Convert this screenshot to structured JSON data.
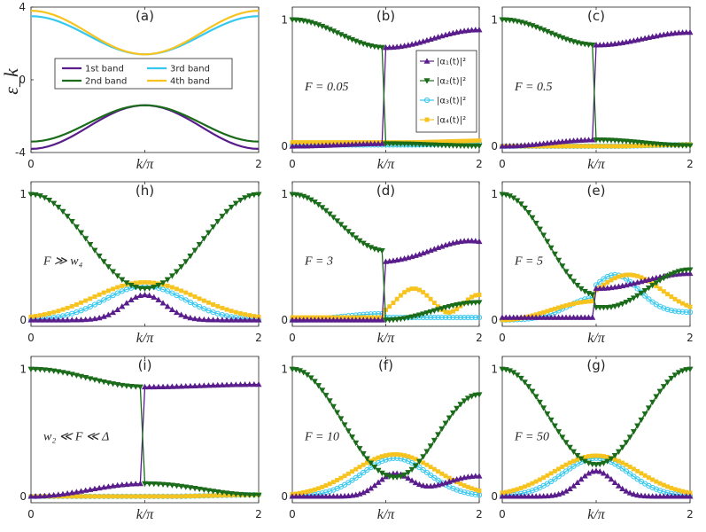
{
  "colors": {
    "purple": "#5a1d8c",
    "green": "#1a6b1a",
    "cyan": "#36c8ef",
    "yellow": "#f7c31f",
    "axis": "#262626"
  },
  "chart_data": [
    {
      "id": "a",
      "type": "line",
      "title": "(a)",
      "xlabel": "k/π",
      "ylabel": "ε_k",
      "xlim": [
        0,
        2
      ],
      "ylim": [
        -4,
        4
      ],
      "xticks": [
        "0",
        "k/π",
        "2"
      ],
      "yticks": [
        "4",
        "0",
        "-4"
      ],
      "model": {
        "kind": "bands",
        "samples": 41
      },
      "series": [
        {
          "name": "1st band",
          "color": "purple",
          "marker": "none",
          "center": -2.6,
          "amp": 1.2
        },
        {
          "name": "2nd band",
          "color": "green",
          "marker": "none",
          "center": -2.4,
          "amp": 1.0
        },
        {
          "name": "3rd band",
          "color": "cyan",
          "marker": "none",
          "center": 2.45,
          "amp": 1.05
        },
        {
          "name": "4th band",
          "color": "yellow",
          "marker": "none",
          "center": 2.6,
          "amp": 1.2
        }
      ],
      "legend": {
        "position": "center",
        "columns": 2,
        "entries": [
          "1st band",
          "3rd band",
          "2nd band",
          "4th band"
        ]
      }
    },
    {
      "id": "b",
      "type": "line",
      "title": "(b)",
      "annotation": "F = 0.05",
      "xlim": [
        0,
        2
      ],
      "ylim": [
        -0.05,
        1.1
      ],
      "xticks": [
        "0",
        "k/π",
        "2"
      ],
      "yticks": [
        "1",
        "0"
      ],
      "model": {
        "kind": "jump",
        "jump_k": 1.0,
        "hi_left": 1.0,
        "hi_end": 0.78,
        "hi_right": 0.92,
        "lo": 0.02,
        "samples": 51
      },
      "series": [
        {
          "name": "|α1(t)|²",
          "color": "purple",
          "marker": "up"
        },
        {
          "name": "|α2(t)|²",
          "color": "green",
          "marker": "down"
        },
        {
          "name": "|α3(t)|²",
          "color": "cyan",
          "marker": "circle",
          "flat": 0.01
        },
        {
          "name": "|α4(t)|²",
          "color": "yellow",
          "marker": "square",
          "flat": 0.03
        }
      ],
      "legend": {
        "position": "center-right",
        "entries": [
          "|α₁(t)|²",
          "|α₂(t)|²",
          "|α₃(t)|²",
          "|α₄(t)|²"
        ]
      }
    },
    {
      "id": "c",
      "type": "line",
      "title": "(c)",
      "annotation": "F = 0.5",
      "xlim": [
        0,
        2
      ],
      "ylim": [
        -0.05,
        1.1
      ],
      "xticks": [
        "0",
        "k/π",
        "2"
      ],
      "yticks": [
        "1",
        "0"
      ],
      "model": {
        "kind": "jump",
        "jump_k": 1.0,
        "hi_left": 1.0,
        "hi_end": 0.8,
        "hi_right": 0.9,
        "lo": 0.05,
        "samples": 51
      },
      "series": [
        {
          "name": "|α1(t)|²",
          "color": "purple",
          "marker": "up"
        },
        {
          "name": "|α2(t)|²",
          "color": "green",
          "marker": "down"
        },
        {
          "name": "|α3(t)|²",
          "color": "cyan",
          "marker": "circle",
          "flat": 0.0
        },
        {
          "name": "|α4(t)|²",
          "color": "yellow",
          "marker": "square",
          "flat": 0.0
        }
      ]
    },
    {
      "id": "h",
      "type": "line",
      "title": "(h)",
      "annotation": "F ≫ w₄",
      "xlim": [
        0,
        2
      ],
      "ylim": [
        -0.05,
        1.1
      ],
      "xticks": [
        "0",
        "k/π",
        "2"
      ],
      "yticks": [
        "1",
        "0"
      ],
      "model": {
        "kind": "cross",
        "cross_y": 0.25,
        "y_end": 1.0,
        "yellow_peak": 0.3,
        "cyan_peak": 0.27,
        "purple_peak": 0.2,
        "peak_k": 1.0,
        "samples": 51
      },
      "series": [
        {
          "name": "|α1(t)|²",
          "color": "purple",
          "marker": "up"
        },
        {
          "name": "|α2(t)|²",
          "color": "green",
          "marker": "down"
        },
        {
          "name": "|α3(t)|²",
          "color": "cyan",
          "marker": "circle"
        },
        {
          "name": "|α4(t)|²",
          "color": "yellow",
          "marker": "square"
        }
      ]
    },
    {
      "id": "d",
      "type": "line",
      "title": "(d)",
      "annotation": "F = 3",
      "xlim": [
        0,
        2
      ],
      "ylim": [
        -0.05,
        1.1
      ],
      "xticks": [
        "0",
        "k/π",
        "2"
      ],
      "yticks": [
        "1",
        "0"
      ],
      "model": {
        "kind": "jump3",
        "jump_k": 1.0,
        "samples": 51
      },
      "series": [
        {
          "name": "|α1(t)|²",
          "color": "purple",
          "marker": "up"
        },
        {
          "name": "|α2(t)|²",
          "color": "green",
          "marker": "down"
        },
        {
          "name": "|α3(t)|²",
          "color": "cyan",
          "marker": "circle"
        },
        {
          "name": "|α4(t)|²",
          "color": "yellow",
          "marker": "square"
        }
      ]
    },
    {
      "id": "e",
      "type": "line",
      "title": "(e)",
      "annotation": "F = 5",
      "xlim": [
        0,
        2
      ],
      "ylim": [
        -0.05,
        1.1
      ],
      "xticks": [
        "0",
        "k/π",
        "2"
      ],
      "yticks": [
        "1",
        "0"
      ],
      "model": {
        "kind": "jump5",
        "jump_k": 1.0,
        "samples": 51
      },
      "series": [
        {
          "name": "|α1(t)|²",
          "color": "purple",
          "marker": "up"
        },
        {
          "name": "|α2(t)|²",
          "color": "green",
          "marker": "down"
        },
        {
          "name": "|α3(t)|²",
          "color": "cyan",
          "marker": "circle"
        },
        {
          "name": "|α4(t)|²",
          "color": "yellow",
          "marker": "square"
        }
      ]
    },
    {
      "id": "i",
      "type": "line",
      "title": "(i)",
      "annotation": "w₂ ≪ F ≪ Δ",
      "xlim": [
        0,
        2
      ],
      "ylim": [
        -0.05,
        1.1
      ],
      "xticks": [
        "0",
        "k/π",
        "2"
      ],
      "yticks": [
        "1",
        "0"
      ],
      "model": {
        "kind": "jump",
        "jump_k": 1.0,
        "hi_left": 1.0,
        "hi_end": 0.86,
        "hi_right": 0.88,
        "lo": 0.1,
        "samples": 51
      },
      "series": [
        {
          "name": "|α1(t)|²",
          "color": "purple",
          "marker": "up"
        },
        {
          "name": "|α2(t)|²",
          "color": "green",
          "marker": "down"
        },
        {
          "name": "|α3(t)|²",
          "color": "cyan",
          "marker": "circle",
          "flat": 0.0
        },
        {
          "name": "|α4(t)|²",
          "color": "yellow",
          "marker": "square",
          "flat": 0.0
        }
      ]
    },
    {
      "id": "f",
      "type": "line",
      "title": "(f)",
      "annotation": "F = 10",
      "xlim": [
        0,
        2
      ],
      "ylim": [
        -0.05,
        1.1
      ],
      "xticks": [
        "0",
        "k/π",
        "2"
      ],
      "yticks": [
        "1",
        "0"
      ],
      "model": {
        "kind": "cross",
        "cross_y": 0.15,
        "y_end": 0.8,
        "yellow_peak": 0.33,
        "cyan_peak": 0.3,
        "purple_peak": 0.18,
        "peak_k": 1.1,
        "tail": 0.16,
        "samples": 51
      },
      "series": [
        {
          "name": "|α1(t)|²",
          "color": "purple",
          "marker": "up"
        },
        {
          "name": "|α2(t)|²",
          "color": "green",
          "marker": "down"
        },
        {
          "name": "|α3(t)|²",
          "color": "cyan",
          "marker": "circle"
        },
        {
          "name": "|α4(t)|²",
          "color": "yellow",
          "marker": "square"
        }
      ]
    },
    {
      "id": "g",
      "type": "line",
      "title": "(g)",
      "annotation": "F = 50",
      "xlim": [
        0,
        2
      ],
      "ylim": [
        -0.05,
        1.1
      ],
      "xticks": [
        "0",
        "k/π",
        "2"
      ],
      "yticks": [
        "1",
        "0"
      ],
      "model": {
        "kind": "cross",
        "cross_y": 0.25,
        "y_end": 1.0,
        "yellow_peak": 0.32,
        "cyan_peak": 0.3,
        "purple_peak": 0.2,
        "peak_k": 1.0,
        "samples": 51
      },
      "series": [
        {
          "name": "|α1(t)|²",
          "color": "purple",
          "marker": "up"
        },
        {
          "name": "|α2(t)|²",
          "color": "green",
          "marker": "down"
        },
        {
          "name": "|α3(t)|²",
          "color": "cyan",
          "marker": "circle"
        },
        {
          "name": "|α4(t)|²",
          "color": "yellow",
          "marker": "square"
        }
      ]
    }
  ]
}
